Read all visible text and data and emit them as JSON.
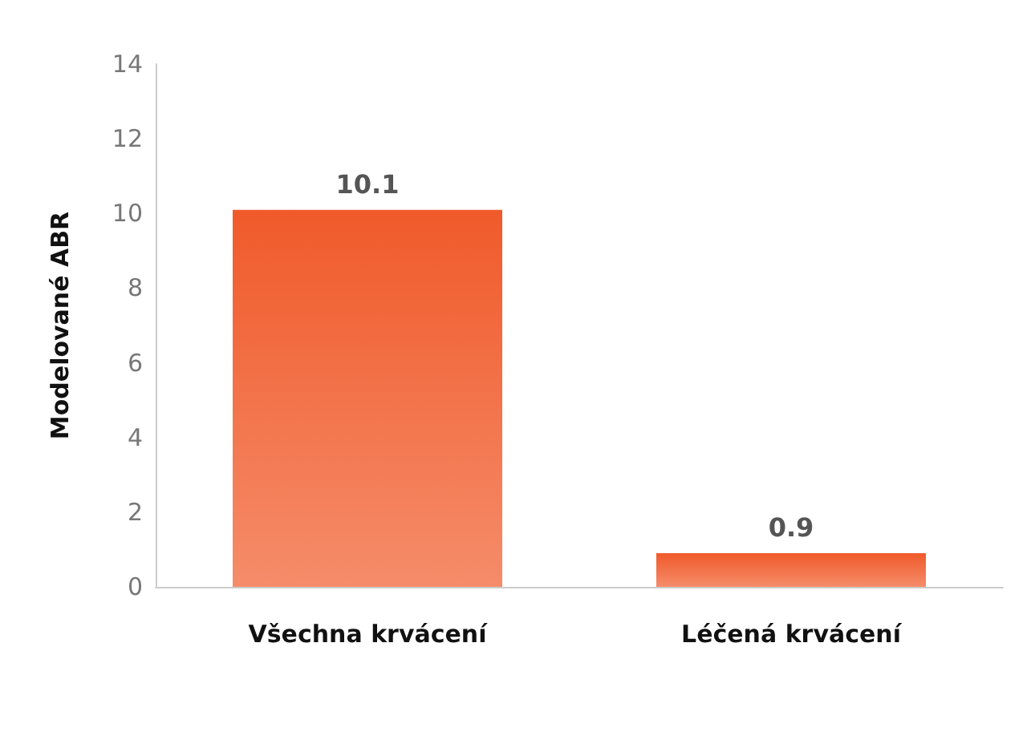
{
  "chart_data": {
    "type": "bar",
    "ylabel": "Modelované ABR",
    "categories": [
      "Všechna krvácení",
      "Léčená krvácení"
    ],
    "values": [
      10.1,
      0.9
    ],
    "color": "#f05a2a",
    "ylim": [
      0,
      14
    ],
    "yticks": [
      0,
      2,
      4,
      6,
      8,
      10,
      12,
      14
    ],
    "grid": false,
    "data_labels": true
  }
}
